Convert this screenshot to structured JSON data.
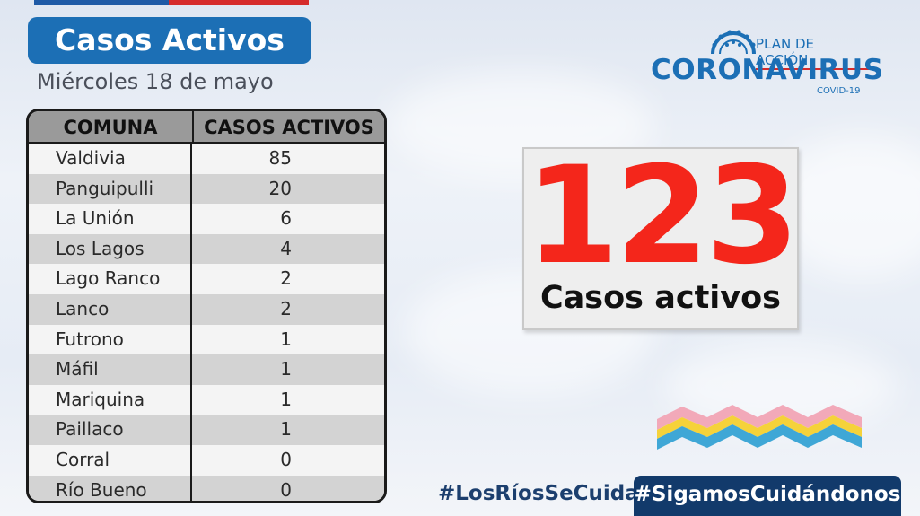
{
  "header": {
    "title": "Casos Activos",
    "date": "Miércoles 18 de mayo"
  },
  "logo": {
    "plan": "PLAN DE ACCIÓN",
    "name": "CORONAVIRUS",
    "sub": "COVID-19"
  },
  "table": {
    "columns": [
      "COMUNA",
      "CASOS ACTIVOS"
    ],
    "rows": [
      {
        "comuna": "Valdivia",
        "casos": "85"
      },
      {
        "comuna": "Panguipulli",
        "casos": "20"
      },
      {
        "comuna": "La Unión",
        "casos": "6"
      },
      {
        "comuna": "Los Lagos",
        "casos": "4"
      },
      {
        "comuna": "Lago Ranco",
        "casos": "2"
      },
      {
        "comuna": "Lanco",
        "casos": "2"
      },
      {
        "comuna": "Futrono",
        "casos": "1"
      },
      {
        "comuna": "Máfil",
        "casos": "1"
      },
      {
        "comuna": "Mariquina",
        "casos": "1"
      },
      {
        "comuna": "Paillaco",
        "casos": "1"
      },
      {
        "comuna": "Corral",
        "casos": "0"
      },
      {
        "comuna": "Río Bueno",
        "casos": "0"
      }
    ]
  },
  "total": {
    "value": "123",
    "label": "Casos activos"
  },
  "hashtags": {
    "left": "#LosRíosSeCuida",
    "right": "#SigamosCuidándonos"
  },
  "colors": {
    "brand_blue": "#1c6fb5",
    "accent_red": "#f4261b",
    "dark_navy": "#123a6b"
  },
  "icons": [
    "virus-icon",
    "decorative-stripes"
  ]
}
